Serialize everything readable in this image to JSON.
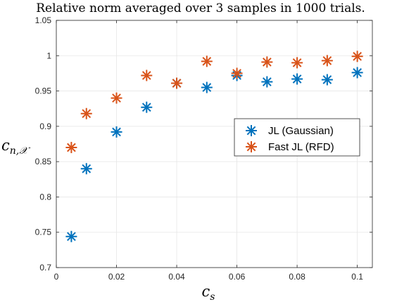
{
  "chart_data": {
    "type": "scatter",
    "title": "Relative norm averaged over 3 samples in 1000 trials.",
    "xlabel": {
      "base": "c",
      "sub": "s"
    },
    "ylabel": {
      "base": "c",
      "sub": "n,𝒳"
    },
    "xlim": [
      0,
      0.105
    ],
    "ylim": [
      0.7,
      1.05
    ],
    "xticks": [
      0,
      0.02,
      0.04,
      0.06,
      0.08,
      0.1
    ],
    "xtick_labels": [
      "0",
      "0.02",
      "0.04",
      "0.06",
      "0.08",
      "0.1"
    ],
    "yticks": [
      0.7,
      0.75,
      0.8,
      0.85,
      0.9,
      0.95,
      1,
      1.05
    ],
    "ytick_labels": [
      "0.7",
      "0.75",
      "0.8",
      "0.85",
      "0.9",
      "0.95",
      "1",
      "1.05"
    ],
    "grid": true,
    "legend_position": "center-right",
    "series": [
      {
        "name": "JL (Gaussian)",
        "color": "#0072BD",
        "marker": "asterisk",
        "x": [
          0.005,
          0.01,
          0.02,
          0.03,
          0.04,
          0.05,
          0.06,
          0.07,
          0.08,
          0.09,
          0.1
        ],
        "y": [
          0.744,
          0.84,
          0.892,
          0.927,
          0.961,
          0.955,
          0.972,
          0.963,
          0.967,
          0.966,
          0.976
        ]
      },
      {
        "name": "Fast JL (RFD)",
        "color": "#D95319",
        "marker": "asterisk",
        "x": [
          0.005,
          0.01,
          0.02,
          0.03,
          0.04,
          0.05,
          0.06,
          0.07,
          0.08,
          0.09,
          0.1
        ],
        "y": [
          0.87,
          0.918,
          0.94,
          0.972,
          0.961,
          0.992,
          0.975,
          0.991,
          0.99,
          0.993,
          0.999
        ]
      }
    ]
  }
}
